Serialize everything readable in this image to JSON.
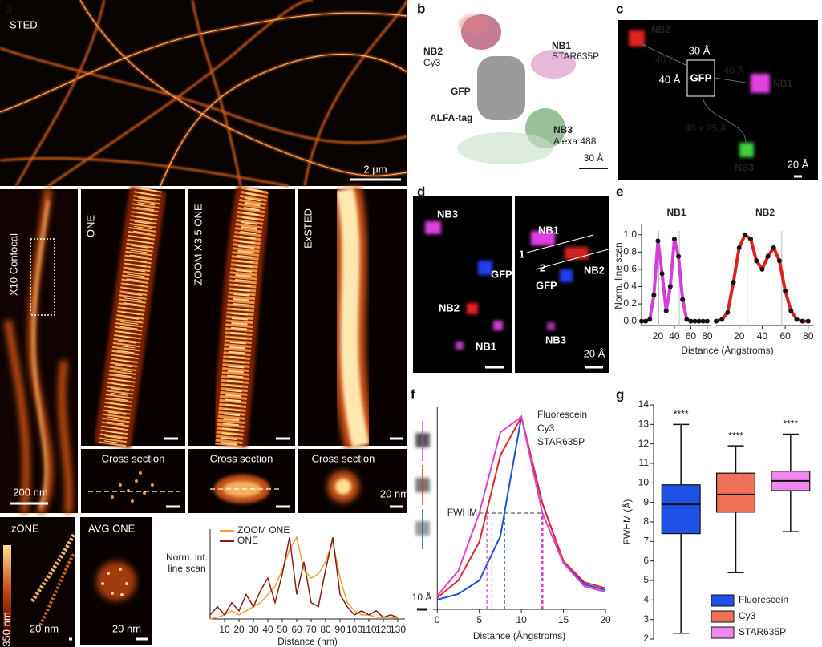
{
  "figure": {
    "panel_labels": [
      "a",
      "b",
      "c",
      "d",
      "e",
      "f",
      "g"
    ],
    "a": {
      "sted": "STED",
      "sted_scale": "2 μm",
      "confocal": "X10 Confocal",
      "one": "ONE",
      "zoom": "ZOOM X3.5 ONE",
      "exsted": "ExSTED",
      "cross_sections": [
        "Cross section",
        "Cross section",
        "Cross section"
      ],
      "scale_200": "200 nm",
      "scale_cross": "20 nm",
      "zone": "zONE",
      "zone_depth": "350 nm",
      "zone_scale": "20 nm",
      "avg": "AVG ONE",
      "avg_scale": "20 nm"
    },
    "b": {
      "nb2": "NB2",
      "nb2_dye": "Cy3",
      "nb1": "NB1",
      "nb1_dye": "STAR635P",
      "gfp": "GFP",
      "alfa": "ALFA-tag",
      "nb3": "NB3",
      "nb3_dye": "Alexa 488",
      "scale": "30 Å"
    },
    "c": {
      "nb2": "NB2",
      "d_nb2": "40 Å",
      "d_top": "30 Å",
      "gfp": "GFP",
      "d_left": "40 Å",
      "d_nb1": "40 Å",
      "nb1": "NB1",
      "d_nb3": "40 + 25 Å",
      "nb3": "NB3",
      "scale": "20 Å"
    },
    "d": {
      "left": [
        "NB3",
        "GFP",
        "NB2",
        "NB1"
      ],
      "right": [
        "NB1",
        "1",
        "2",
        "NB2",
        "GFP",
        "NB3"
      ],
      "scale": "20 Å"
    }
  },
  "chart_data": [
    {
      "type": "line",
      "y_label": "Norm. int. line scan",
      "x_label": "Distance (nm)",
      "x": [
        0,
        5,
        10,
        15,
        20,
        25,
        30,
        35,
        40,
        45,
        50,
        55,
        60,
        65,
        70,
        75,
        80,
        85,
        90,
        95,
        100,
        105,
        110,
        115,
        120,
        125,
        130
      ],
      "xlim": [
        0,
        135
      ],
      "xticks": [
        10,
        20,
        30,
        40,
        50,
        60,
        70,
        80,
        90,
        100,
        110,
        120,
        130
      ],
      "ylim": [
        0,
        1.1
      ],
      "legend": "upper left",
      "series": [
        {
          "name": "ZOOM ONE",
          "color": "#f0a030",
          "values": [
            0,
            0.02,
            0.05,
            0.1,
            0.05,
            0.1,
            0.15,
            0.2,
            0.3,
            0.4,
            0.6,
            0.85,
            1.0,
            0.6,
            0.5,
            0.55,
            0.7,
            0.95,
            0.5,
            0.2,
            0.1,
            0.05,
            0.05,
            0.02,
            0.02,
            0.02,
            0.01
          ]
        },
        {
          "name": "ONE",
          "color": "#8b1a1a",
          "values": [
            0.05,
            0.15,
            0.05,
            0.2,
            0.1,
            0.3,
            0.15,
            0.35,
            0.5,
            0.2,
            0.55,
            1.0,
            0.3,
            0.7,
            0.2,
            0.15,
            0.6,
            1.0,
            0.3,
            0.15,
            0.05,
            0.1,
            0.05,
            0.1,
            0.02,
            0.05,
            0.02
          ]
        }
      ]
    },
    {
      "type": "dots",
      "title": "NB1",
      "y_label": "Norm. line scan",
      "x_label": "Distance (Ångstroms)",
      "color": "#d63cd6",
      "x": [
        0,
        5,
        10,
        15,
        20,
        25,
        30,
        35,
        40,
        45,
        50,
        55,
        60,
        65,
        70,
        75,
        80
      ],
      "values": [
        0,
        0,
        0.02,
        0.3,
        0.93,
        0.55,
        0.12,
        0.4,
        0.95,
        0.75,
        0.25,
        0.02,
        0,
        0,
        0,
        0,
        0
      ],
      "peak_lines": [
        21,
        46
      ],
      "xlim": [
        0,
        85
      ],
      "xticks": [
        20,
        40,
        60,
        80
      ],
      "ylim": [
        -0.05,
        1.1
      ],
      "yticks": [
        {
          "value": 0,
          "label": "0.0"
        },
        0.2,
        0.4,
        0.6,
        0.8,
        {
          "value": 1,
          "label": "1.0"
        }
      ]
    },
    {
      "type": "dots",
      "title": "NB2",
      "color": "#e02020",
      "x": [
        0,
        5,
        10,
        15,
        20,
        25,
        30,
        35,
        40,
        45,
        50,
        55,
        60,
        65,
        70,
        75,
        80
      ],
      "values": [
        0,
        0.02,
        0.1,
        0.45,
        0.85,
        1.0,
        0.95,
        0.7,
        0.6,
        0.75,
        0.85,
        0.7,
        0.35,
        0.12,
        0.02,
        0,
        0
      ],
      "peak_lines": [
        27,
        57
      ],
      "xlim": [
        0,
        85
      ],
      "xticks": [
        20,
        40,
        60,
        80
      ],
      "ylim": [
        -0.05,
        1.1
      ]
    },
    {
      "type": "fwhm",
      "x_label": "Distance (Ångstroms)",
      "annotation": "FWHM",
      "scale_bar": "10 Å",
      "fwhm_level": 0.5,
      "legend": "upper right",
      "x": [
        0,
        2.5,
        5,
        7.5,
        10,
        12.5,
        15,
        17.5,
        20
      ],
      "xlim": [
        -0.5,
        20
      ],
      "xticks": [
        0,
        5,
        10,
        15,
        20
      ],
      "ylim": [
        0,
        1.05
      ],
      "series": [
        {
          "name": "Fluorescein",
          "color": "#1f4fe0",
          "values": [
            0.05,
            0.08,
            0.15,
            0.38,
            1.0,
            0.55,
            0.25,
            0.13,
            0.1
          ],
          "fwhm": [
            8,
            12.4
          ]
        },
        {
          "name": "Cy3",
          "color": "#e02828",
          "values": [
            0.06,
            0.15,
            0.35,
            0.8,
            1.0,
            0.55,
            0.25,
            0.14,
            0.11
          ],
          "fwhm": [
            6.5,
            12.4
          ]
        },
        {
          "name": "STAR635P",
          "color": "#e040d0",
          "values": [
            0.07,
            0.2,
            0.5,
            0.92,
            1.0,
            0.5,
            0.24,
            0.12,
            0.09
          ],
          "fwhm": [
            5.9,
            12.5
          ]
        }
      ]
    },
    {
      "type": "box",
      "y_label": "FWHM (Å)",
      "ylim": [
        2,
        14
      ],
      "yticks": [
        2,
        3,
        4,
        5,
        6,
        7,
        8,
        9,
        10,
        11,
        12,
        13,
        14
      ],
      "legend": "lower right",
      "series": [
        {
          "name": "Fluorescein",
          "color": "#1f50e8",
          "values": [
            2.3,
            7.4,
            8.9,
            9.9,
            13.0
          ],
          "label": "****"
        },
        {
          "name": "Cy3",
          "color": "#f0705a",
          "values": [
            5.4,
            8.5,
            9.4,
            10.5,
            11.9
          ],
          "label": "****"
        },
        {
          "name": "STAR635P",
          "color": "#ee88ee",
          "values": [
            7.5,
            9.6,
            10.1,
            10.6,
            12.5
          ],
          "label": "****"
        }
      ]
    }
  ]
}
